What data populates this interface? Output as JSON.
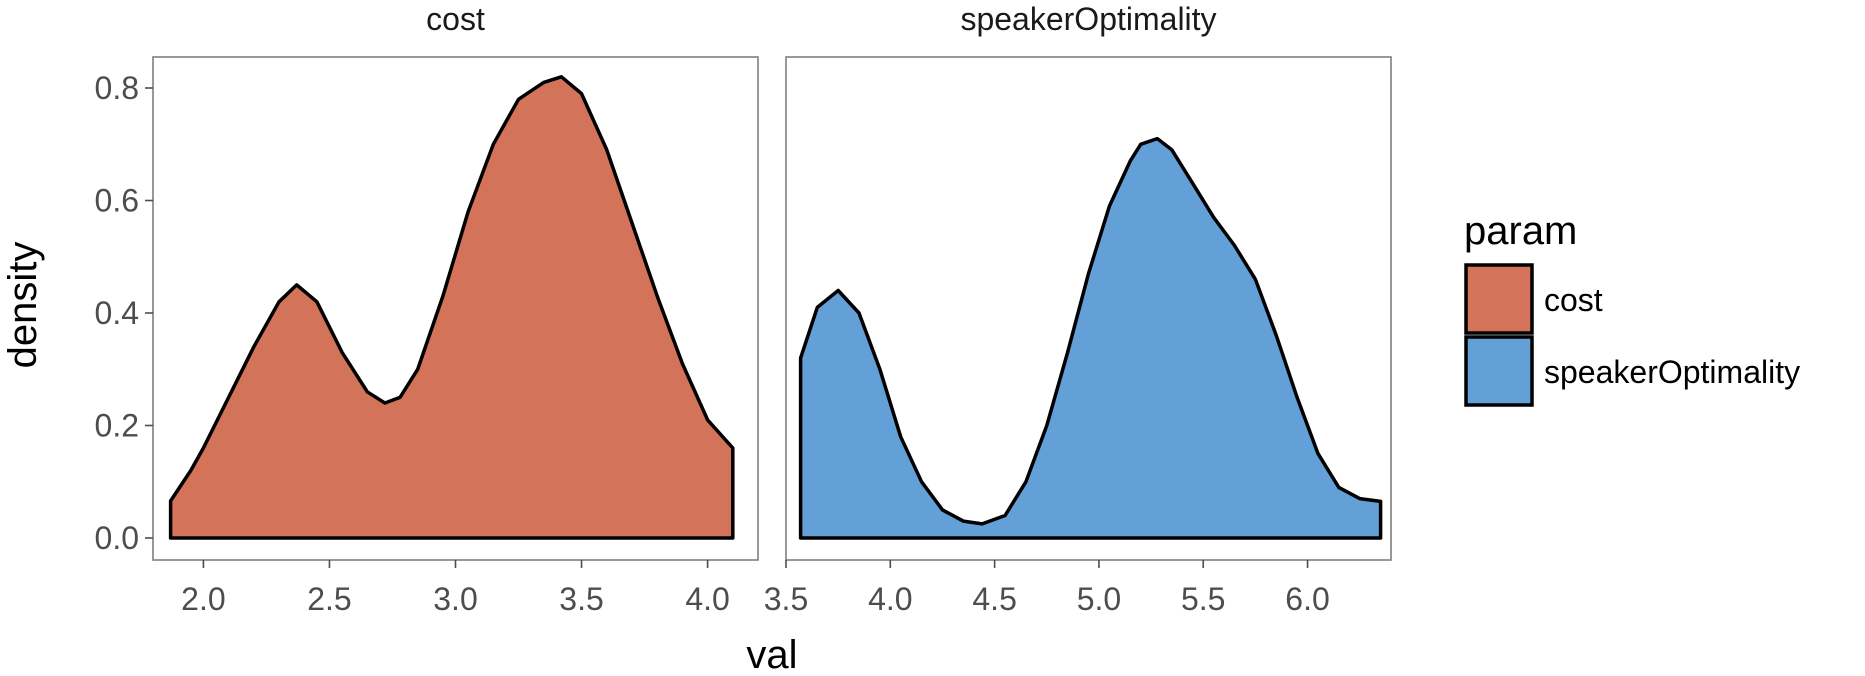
{
  "chart_data": {
    "type": "area",
    "xlabel": "val",
    "ylabel": "density",
    "ylim": [
      0,
      0.84
    ],
    "yticks": [
      0.0,
      0.2,
      0.4,
      0.6,
      0.8
    ],
    "ytick_labels": [
      "0.0",
      "0.2",
      "0.4",
      "0.6",
      "0.8"
    ],
    "grid": false,
    "legend": {
      "title": "param",
      "position": "right",
      "entries": [
        {
          "label": "cost",
          "color": "#D2735A"
        },
        {
          "label": "speakerOptimality",
          "color": "#63A0D8"
        }
      ]
    },
    "panels": [
      {
        "strip": "cost",
        "series_name": "cost",
        "color": "#D2735A",
        "xlim": [
          1.8,
          4.2
        ],
        "xticks": [
          2.0,
          2.5,
          3.0,
          3.5,
          4.0
        ],
        "xtick_labels": [
          "2.0",
          "2.5",
          "3.0",
          "3.5",
          "4.0"
        ],
        "x": [
          1.87,
          1.95,
          2.0,
          2.1,
          2.2,
          2.3,
          2.37,
          2.45,
          2.55,
          2.65,
          2.72,
          2.78,
          2.85,
          2.95,
          3.05,
          3.15,
          3.25,
          3.35,
          3.42,
          3.5,
          3.6,
          3.7,
          3.8,
          3.9,
          4.0,
          4.1
        ],
        "y": [
          0.066,
          0.12,
          0.16,
          0.25,
          0.34,
          0.42,
          0.45,
          0.42,
          0.33,
          0.26,
          0.24,
          0.25,
          0.3,
          0.43,
          0.58,
          0.7,
          0.78,
          0.81,
          0.82,
          0.79,
          0.69,
          0.56,
          0.43,
          0.31,
          0.21,
          0.16
        ]
      },
      {
        "strip": "speakerOptimality",
        "series_name": "speakerOptimality",
        "color": "#63A0D8",
        "xlim": [
          3.5,
          6.4
        ],
        "xticks": [
          3.5,
          4.0,
          4.5,
          5.0,
          5.5,
          6.0
        ],
        "xtick_labels": [
          "3.5",
          "4.0",
          "4.5",
          "5.0",
          "5.5",
          "6.0"
        ],
        "x": [
          3.57,
          3.65,
          3.75,
          3.85,
          3.95,
          4.05,
          4.15,
          4.25,
          4.35,
          4.44,
          4.55,
          4.65,
          4.75,
          4.85,
          4.95,
          5.05,
          5.15,
          5.2,
          5.28,
          5.35,
          5.45,
          5.55,
          5.65,
          5.75,
          5.85,
          5.95,
          6.05,
          6.15,
          6.25,
          6.35
        ],
        "y": [
          0.32,
          0.41,
          0.44,
          0.4,
          0.3,
          0.18,
          0.1,
          0.05,
          0.03,
          0.025,
          0.04,
          0.1,
          0.2,
          0.33,
          0.47,
          0.59,
          0.67,
          0.7,
          0.71,
          0.69,
          0.63,
          0.57,
          0.52,
          0.46,
          0.36,
          0.25,
          0.15,
          0.09,
          0.07,
          0.065
        ]
      }
    ]
  }
}
